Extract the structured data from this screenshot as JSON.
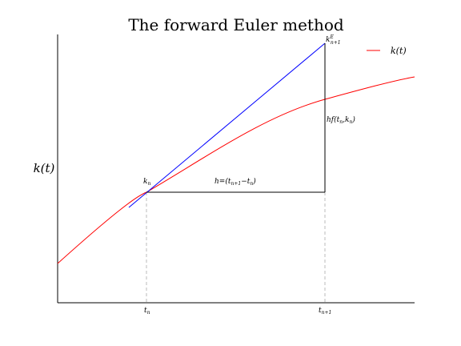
{
  "title": "The forward Euler method",
  "ylabel": "k(t)",
  "legend": {
    "label": "k(t)",
    "color": "#ff0000"
  },
  "colors": {
    "curve": "#ff0000",
    "tangent": "#0000ff",
    "step": "#000000",
    "guide": "#bbbbbb"
  },
  "labels": {
    "k_n": "k",
    "k_n_sub": "n",
    "k_next": "k",
    "k_next_sup": "E",
    "k_next_sub": "n+1",
    "step_h": "h=(t",
    "step_h_sub1": "n+1",
    "step_h_mid": "−t",
    "step_h_sub2": "n",
    "step_h_end": ")",
    "rise_prefix": "hf(t",
    "rise_sub1": "n",
    "rise_mid": ",k",
    "rise_sub2": "n",
    "rise_end": ")",
    "tick_tn": "t",
    "tick_tn_sub": "n",
    "tick_tn1": "t",
    "tick_tn1_sub": "n+1"
  }
}
